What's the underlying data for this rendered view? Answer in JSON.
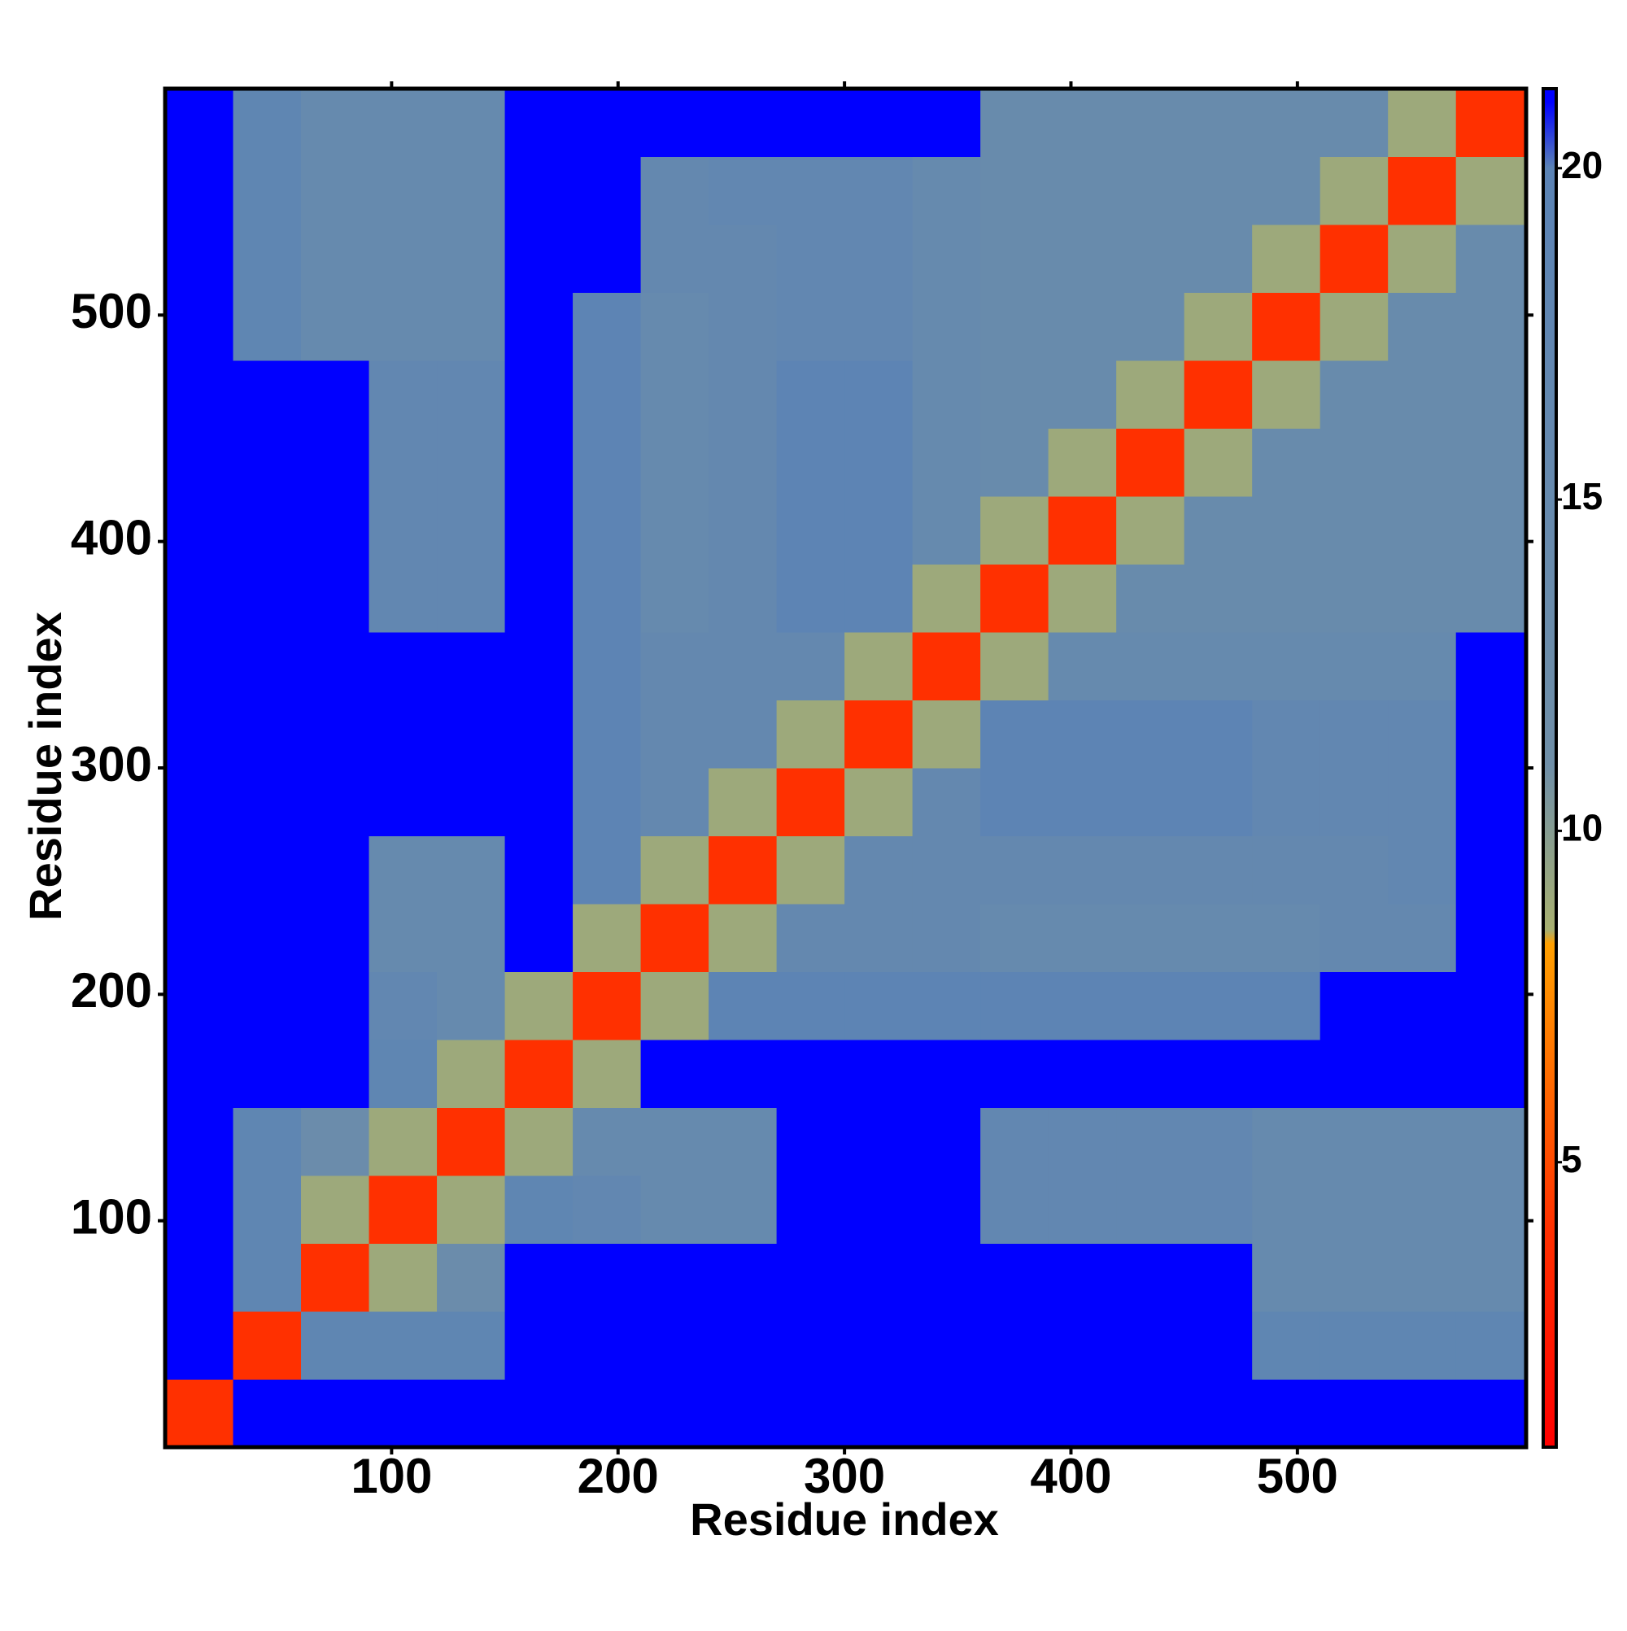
{
  "chart_data": {
    "type": "heatmap",
    "xlabel": "Residue index",
    "ylabel": "Residue index",
    "x": [
      15,
      45,
      75,
      105,
      135,
      165,
      195,
      225,
      255,
      285,
      315,
      345,
      375,
      405,
      435,
      465,
      495,
      525,
      555,
      585
    ],
    "y": [
      15,
      45,
      75,
      105,
      135,
      165,
      195,
      225,
      255,
      285,
      315,
      345,
      375,
      405,
      435,
      465,
      495,
      525,
      555,
      585
    ],
    "z": [
      [
        4,
        21,
        21,
        21,
        21,
        21,
        21,
        21,
        21,
        21,
        21,
        21,
        21,
        21,
        21,
        21,
        21,
        21,
        21,
        21
      ],
      [
        21,
        4,
        18,
        18,
        18,
        21,
        21,
        21,
        21,
        21,
        21,
        21,
        21,
        21,
        21,
        21,
        18,
        18,
        18,
        18
      ],
      [
        21,
        18,
        4,
        9,
        13,
        21,
        21,
        21,
        21,
        21,
        21,
        21,
        21,
        21,
        21,
        21,
        15,
        15,
        15,
        15
      ],
      [
        21,
        18,
        9,
        4,
        9,
        18,
        17,
        15,
        15,
        21,
        21,
        21,
        17,
        17,
        17,
        17,
        15,
        15,
        15,
        15
      ],
      [
        21,
        18,
        13,
        9,
        4,
        9,
        15,
        15,
        15,
        21,
        21,
        21,
        17,
        17,
        17,
        17,
        15,
        15,
        15,
        15
      ],
      [
        21,
        21,
        21,
        18,
        9,
        4,
        9,
        21,
        21,
        21,
        21,
        21,
        21,
        21,
        21,
        21,
        21,
        21,
        21,
        21
      ],
      [
        21,
        21,
        21,
        17,
        15,
        9,
        4,
        9,
        19,
        19,
        19,
        19,
        19,
        19,
        19,
        19,
        19,
        21,
        21,
        21
      ],
      [
        21,
        21,
        21,
        15,
        15,
        21,
        9,
        4,
        9,
        16,
        16,
        16,
        15,
        15,
        15,
        15,
        15,
        16,
        16,
        21
      ],
      [
        21,
        21,
        21,
        15,
        15,
        21,
        19,
        9,
        4,
        9,
        16,
        16,
        16,
        16,
        16,
        16,
        16,
        16,
        17,
        21
      ],
      [
        21,
        21,
        21,
        21,
        21,
        21,
        19,
        16,
        9,
        4,
        9,
        16,
        19,
        19,
        19,
        19,
        17,
        17,
        17,
        21
      ],
      [
        21,
        21,
        21,
        21,
        21,
        21,
        19,
        16,
        16,
        9,
        4,
        9,
        19,
        19,
        19,
        19,
        17,
        17,
        17,
        21
      ],
      [
        21,
        21,
        21,
        21,
        21,
        21,
        19,
        16,
        16,
        16,
        9,
        4,
        9,
        15,
        15,
        15,
        15,
        15,
        15,
        21
      ],
      [
        21,
        21,
        21,
        17,
        17,
        21,
        19,
        15,
        16,
        19,
        19,
        9,
        4,
        9,
        14,
        14,
        14,
        14,
        14,
        14
      ],
      [
        21,
        21,
        21,
        17,
        17,
        21,
        19,
        15,
        16,
        19,
        19,
        15,
        9,
        4,
        9,
        14,
        14,
        14,
        14,
        14
      ],
      [
        21,
        21,
        21,
        17,
        17,
        21,
        19,
        15,
        16,
        19,
        19,
        15,
        14,
        9,
        4,
        9,
        14,
        14,
        14,
        14
      ],
      [
        21,
        21,
        21,
        17,
        17,
        21,
        19,
        15,
        16,
        19,
        19,
        15,
        14,
        14,
        9,
        4,
        9,
        14,
        14,
        14
      ],
      [
        21,
        18,
        15,
        15,
        15,
        21,
        19,
        15,
        16,
        17,
        17,
        15,
        14,
        14,
        14,
        9,
        4,
        9,
        14,
        14
      ],
      [
        21,
        18,
        15,
        15,
        15,
        21,
        21,
        16,
        16,
        17,
        17,
        15,
        14,
        14,
        14,
        14,
        9,
        4,
        9,
        14
      ],
      [
        21,
        18,
        15,
        15,
        15,
        21,
        21,
        16,
        17,
        17,
        17,
        15,
        14,
        14,
        14,
        14,
        14,
        9,
        4,
        9
      ],
      [
        21,
        18,
        15,
        15,
        15,
        21,
        21,
        21,
        21,
        21,
        21,
        21,
        14,
        14,
        14,
        14,
        14,
        14,
        9,
        4
      ]
    ],
    "xlim": [
      0,
      601
    ],
    "ylim": [
      0,
      600
    ],
    "xticks": [
      100,
      200,
      300,
      400,
      500
    ],
    "yticks": [
      100,
      200,
      300,
      400,
      500
    ],
    "zlim": [
      0.7,
      21.2
    ],
    "zticks": [
      5,
      10,
      15,
      20
    ],
    "colorscale": [
      [
        0.7,
        "#ff0000"
      ],
      [
        4,
        "#ff3000"
      ],
      [
        8.3,
        "#ffa000"
      ],
      [
        8.5,
        "#a8b070"
      ],
      [
        11,
        "#6f8fa8"
      ],
      [
        20,
        "#5b83b5"
      ],
      [
        21,
        "#0000ff"
      ]
    ]
  }
}
